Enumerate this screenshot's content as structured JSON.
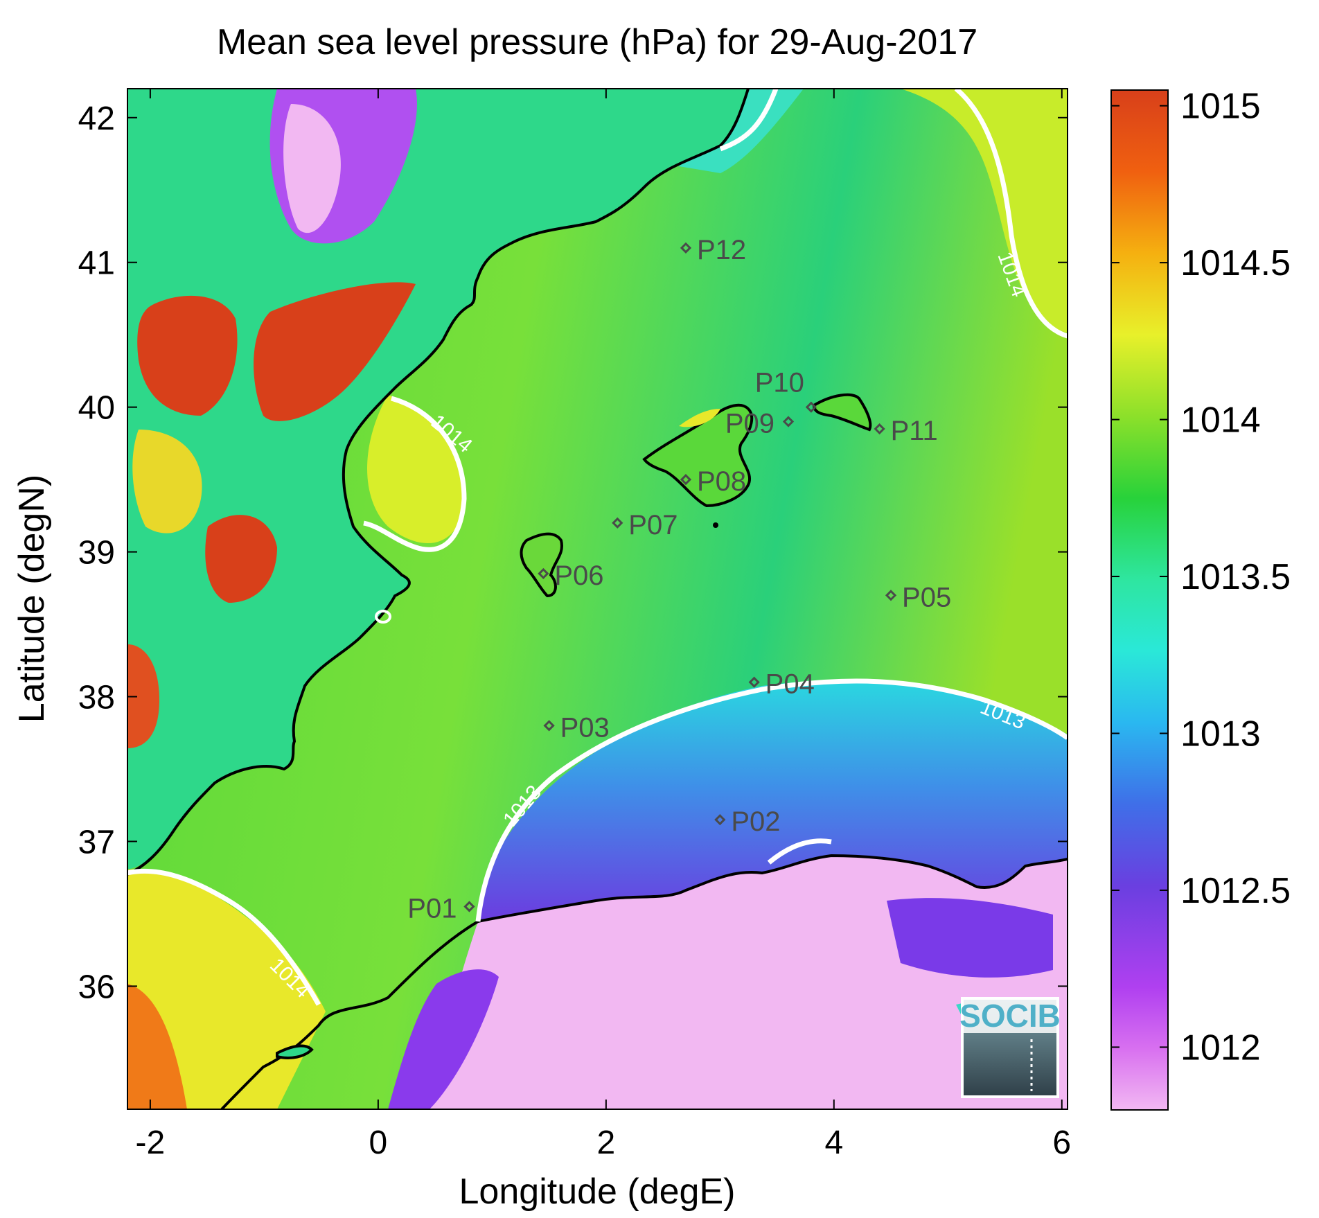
{
  "chart_data": {
    "type": "heatmap",
    "title": "Mean sea level pressure (hPa) for 29-Aug-2017",
    "xlabel": "Longitude (degE)",
    "ylabel": "Latitude (degN)",
    "xlim": [
      -2.2,
      6.05
    ],
    "ylim": [
      35.15,
      42.2
    ],
    "x_ticks": [
      "-2",
      "0",
      "2",
      "4",
      "6"
    ],
    "y_ticks": [
      "36",
      "37",
      "38",
      "39",
      "40",
      "41",
      "42"
    ],
    "colorbar": {
      "range": [
        1011.8,
        1015.05
      ],
      "ticks": [
        "1012",
        "1012.5",
        "1013",
        "1013.5",
        "1014",
        "1014.5",
        "1015"
      ],
      "colormap": [
        "#f2b8f2",
        "#c040f0",
        "#6a3fe0",
        "#3f6fe8",
        "#2ad8f0",
        "#2ee6a0",
        "#28d23a",
        "#8ce02a",
        "#e8f02a",
        "#f5b010",
        "#f06010",
        "#d8401a"
      ]
    },
    "contours": [
      {
        "level": "1014",
        "label": "1014"
      },
      {
        "level": "1013",
        "label": "1013"
      }
    ],
    "stations": [
      {
        "name": "P01",
        "lon": 0.8,
        "lat": 36.55
      },
      {
        "name": "P02",
        "lon": 3.0,
        "lat": 37.15
      },
      {
        "name": "P03",
        "lon": 1.5,
        "lat": 37.8
      },
      {
        "name": "P04",
        "lon": 3.3,
        "lat": 38.1
      },
      {
        "name": "P05",
        "lon": 4.5,
        "lat": 38.7
      },
      {
        "name": "P06",
        "lon": 1.45,
        "lat": 38.85
      },
      {
        "name": "P07",
        "lon": 2.1,
        "lat": 39.2
      },
      {
        "name": "P08",
        "lon": 2.7,
        "lat": 39.5
      },
      {
        "name": "P09",
        "lon": 3.6,
        "lat": 39.9
      },
      {
        "name": "P10",
        "lon": 3.8,
        "lat": 40.0
      },
      {
        "name": "P11",
        "lon": 4.4,
        "lat": 39.85
      },
      {
        "name": "P12",
        "lon": 2.7,
        "lat": 41.1
      }
    ],
    "legend": "none",
    "grid": false
  },
  "logo": {
    "text": "SOCIB"
  }
}
